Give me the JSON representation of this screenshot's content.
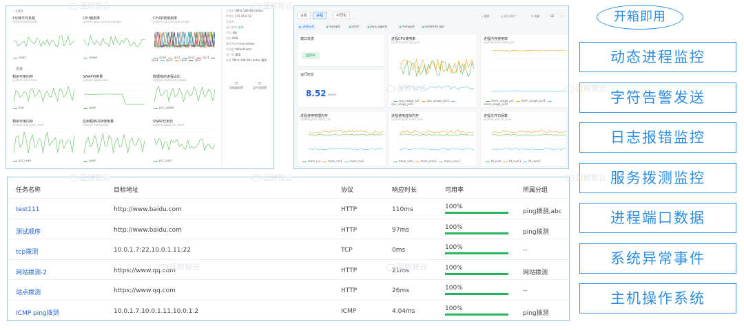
{
  "left_panel": {
    "section_cpu": "CPU",
    "section_mem": "内存",
    "charts": [
      {
        "title": "1分钟平均负载",
        "sub": "system.load.load1",
        "legend": [
          "load1"
        ]
      },
      {
        "title": "CPU使用率",
        "sub": "system.cpu.summary.usage",
        "legend": [
          "usage"
        ]
      },
      {
        "title": "CPU单核使用率",
        "sub": "system.cpu.percore.usage",
        "legend": [
          "cpu0",
          "cpu1",
          "cpu2",
          "cpu3",
          "cpu4",
          "cpu5",
          "cpu6",
          "cpu7"
        ]
      },
      {
        "title": "剩余可用内存",
        "sub": "system.mem.free",
        "legend": [
          "free"
        ]
      },
      {
        "title": "SWAP可用量",
        "sub": "system.swap.used",
        "legend": [
          "used"
        ]
      },
      {
        "title": "数据库的进程占比",
        "sub": "system.mem.pct_usable",
        "legend": [
          "pct_usable"
        ]
      },
      {
        "title": "剩余可用内存",
        "sub": "system.mem.pct_used",
        "legend": [
          "pct_used"
        ]
      },
      {
        "title": "应用程序内存使用量",
        "sub": "system.mem.used",
        "legend": [
          "used"
        ]
      },
      {
        "title": "SWAP已用比",
        "sub": "system.swap.pct_used",
        "legend": [
          "pct_used"
        ]
      }
    ],
    "side_items": [
      [
        "主机名",
        "VM-0-106-00-centos"
      ],
      [
        "IP地址",
        "172.16.0.12"
      ],
      [
        "分组名",
        ""
      ],
      [
        "运行状态",
        "在线"
      ],
      [
        "CPU",
        "4核"
      ],
      [
        "内存",
        "8GB"
      ],
      [
        "操作系统",
        "linux centos"
      ],
      [
        "系统盘",
        "default-vms"
      ],
      [
        "云厂商",
        "通用"
      ],
      [
        "标签",
        "VM-0-106-00-centos 通用"
      ]
    ],
    "side_buttons": [
      "采集器配置",
      "监控项配置"
    ]
  },
  "right_panel": {
    "tabs": [
      "主机",
      "进程",
      "不同化"
    ],
    "toolbar": [
      "搜索",
      "近1小时",
      "刷新"
    ],
    "chips": [
      "_default",
      "mysqld",
      "sshd",
      "java_agent",
      "mongod",
      "nodeinfo-api"
    ],
    "port_title": "端口状态",
    "port_status": "监听中",
    "runtime_title": "运行时长",
    "runtime_value": "8.52",
    "runtime_unit": "weeks",
    "charts": [
      {
        "title": "进程CPU使用率",
        "sub": "system.proc.cpu_pct",
        "legend": [
          "cpu_usage_pct",
          "cpu_usage_pct1",
          "cpu_usage_pct2"
        ]
      },
      {
        "title": "进程内存使用率",
        "sub": "system.proc.mem_pct",
        "legend": [
          "mem_usage_pct",
          "mem_usage_pct1",
          "mem_usage_pct2"
        ]
      },
      {
        "title": "进程使用物理内存",
        "sub": "system.proc.mem_rss",
        "legend": [
          "mem_rss",
          "mem_rss1",
          "mem_rss2"
        ]
      },
      {
        "title": "进程使用虚拟内存",
        "sub": "system.proc.mem_vms",
        "legend": [
          "mem_vms",
          "mem_vms1",
          "mem_vms2"
        ]
      },
      {
        "title": "进程文件句柄数",
        "sub": "system.proc.fd_num",
        "legend": [
          "fd_num",
          "fd_num1",
          "fd_num2"
        ]
      }
    ]
  },
  "table": {
    "headers": [
      "任务名称",
      "目标地址",
      "协议",
      "响应时长",
      "可用率",
      "所属分组"
    ],
    "rows": [
      {
        "name": "test111",
        "target": "http://www.baidu.com",
        "protocol": "HTTP",
        "response": "110ms",
        "avail": "100%",
        "group": "ping拨测,abc"
      },
      {
        "name": "测试顺序",
        "target": "http://www.baidu.com",
        "protocol": "HTTP",
        "response": "97ms",
        "avail": "100%",
        "group": "ping拨测"
      },
      {
        "name": "tcp拨测",
        "target": "10.0.1.7:22,10.0.1.11:22",
        "protocol": "TCP",
        "response": "0ms",
        "avail": "100%",
        "group": "--"
      },
      {
        "name": "网站拨测-2",
        "target": "https://www.qq.com",
        "protocol": "HTTP",
        "response": "21ms",
        "avail": "100%",
        "group": "网站拨测"
      },
      {
        "name": "站点拨测",
        "target": "https://www.qq.com",
        "protocol": "HTTP",
        "response": "26ms",
        "avail": "100%",
        "group": "--"
      },
      {
        "name": "ICMP ping拨测",
        "target": "10.0.1.7,10.0.1.11,10.0.1.2",
        "protocol": "ICMP",
        "response": "4.04ms",
        "avail": "100%",
        "group": "ping拨测"
      }
    ]
  },
  "features": {
    "title": "开箱即用",
    "items": [
      "动态进程监控",
      "字符告警发送",
      "日志报错监控",
      "服务拨测监控",
      "进程端口数据",
      "系统异常事件",
      "主机操作系统"
    ]
  },
  "watermark": "蓝鲸智云",
  "colors": {
    "accent": "#2e8ee0",
    "link": "#1c62d8",
    "ok": "#27b35a",
    "green": "#5cb85c",
    "orange": "#f5a623",
    "blue": "#4a90e2"
  }
}
